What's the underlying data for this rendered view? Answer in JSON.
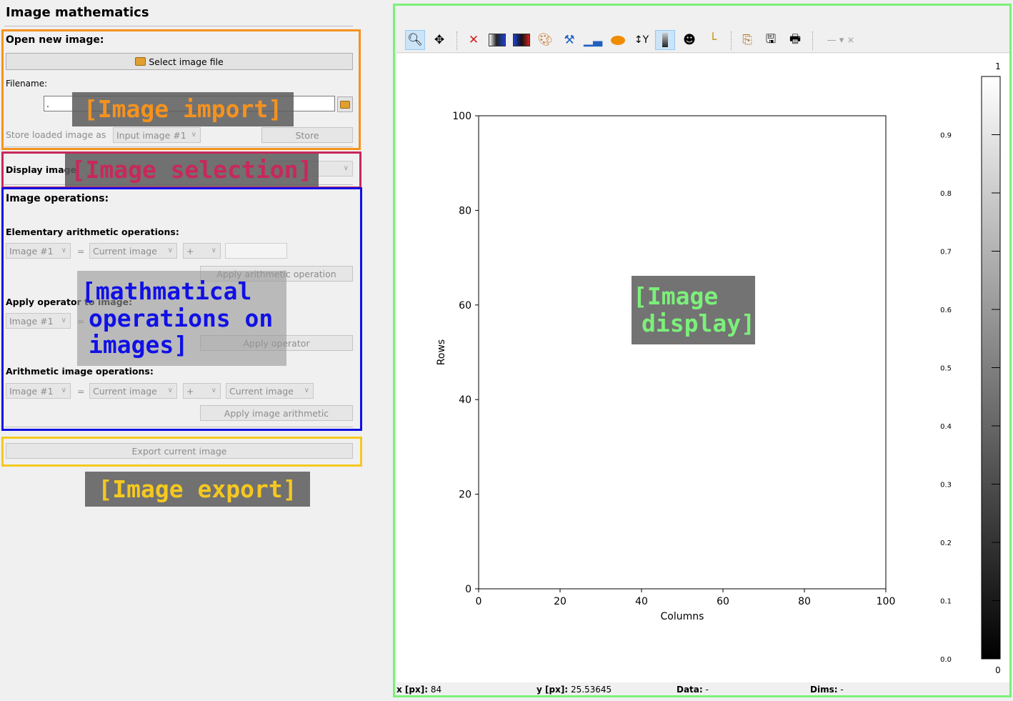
{
  "left_panel": {
    "title": "Image mathematics",
    "import": {
      "heading": "Open new image:",
      "select_button": "Select image file",
      "filename_label": "Filename:",
      "filename_value": ".",
      "store_label": "Store loaded image as",
      "store_combo": "Input image #1",
      "store_button": "Store"
    },
    "selection": {
      "label": "Display image",
      "combo": ""
    },
    "operations": {
      "heading": "Image operations:",
      "elementary_heading": "Elementary arithmetic operations:",
      "elem_target": "Image #1",
      "eq": "=",
      "elem_source": "Current image",
      "elem_op": "+",
      "elem_value": "",
      "elem_apply": "Apply arithmetic operation",
      "operator_heading": "Apply operator to image:",
      "op_target": "Image #1",
      "op_apply": "Apply operator",
      "image_arith_heading": "Arithmetic image operations:",
      "ia_target": "Image #1",
      "ia_source1": "Current image",
      "ia_op": "+",
      "ia_source2": "Current image",
      "ia_apply": "Apply image arithmetic"
    },
    "export": {
      "button": "Export current image"
    }
  },
  "annotations": {
    "import": "[Image import]",
    "selection": "[Image selection]",
    "operations_line1": "[mathmatical",
    "operations_line2": "operations on",
    "operations_line3": "images]",
    "export": "[Image export]",
    "display_line1": "[Image",
    "display_line2": "display]",
    "colors": {
      "import": "#f5921e",
      "selection": "#c8285a",
      "operations": "#1010e6",
      "export": "#f5c820",
      "display": "#7cf07a"
    }
  },
  "toolbar": {
    "icons": [
      "zoom-icon",
      "pan-icon",
      "clear-icon",
      "color-map-icon",
      "color-map-alt-icon",
      "palette-icon",
      "paint-icon",
      "histogram-icon",
      "ellipse-icon",
      "flip-y-icon",
      "colorbar-icon",
      "mask-icon",
      "axes-icon",
      "copy-icon",
      "save-icon",
      "print-icon",
      "line-style-icon"
    ],
    "active": "zoom-icon"
  },
  "status_bar": {
    "x_label": "x [px]:",
    "x_value": "84",
    "y_label": "y [px]:",
    "y_value": "25.53645",
    "data_label": "Data:",
    "data_value": "-",
    "dims_label": "Dims:",
    "dims_value": "-"
  },
  "chart_data": {
    "type": "heatmap",
    "xlabel": "Columns",
    "ylabel": "Rows",
    "xlim": [
      0,
      100
    ],
    "ylim": [
      0,
      100
    ],
    "x_ticks": [
      0,
      20,
      40,
      60,
      80,
      100
    ],
    "y_ticks": [
      0,
      20,
      40,
      60,
      80,
      100
    ],
    "colorbar": {
      "min": 0,
      "max": 1,
      "min_label": "0",
      "max_label": "1",
      "ticks": [
        "0.0",
        "0.1",
        "0.2",
        "0.3",
        "0.4",
        "0.5",
        "0.6",
        "0.7",
        "0.8",
        "0.9"
      ],
      "colormap": "gray"
    },
    "grid": false
  }
}
